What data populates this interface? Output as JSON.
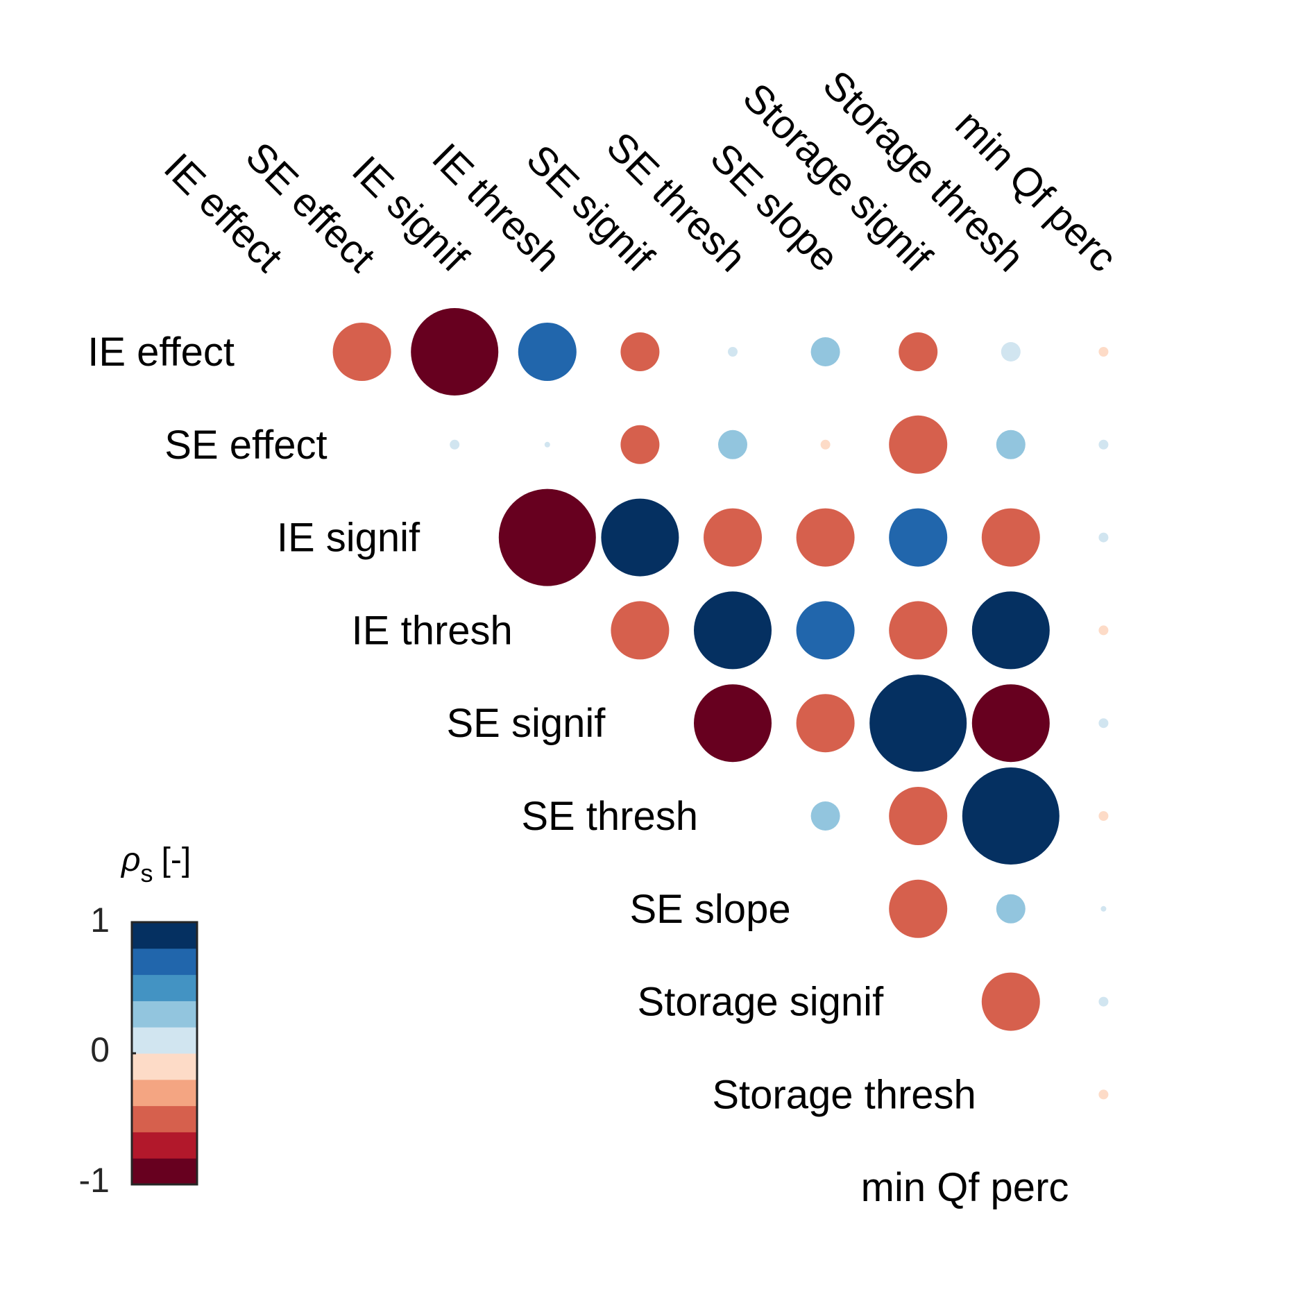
{
  "chart_data": {
    "type": "heatmap",
    "variables": [
      "IE effect",
      "SE effect",
      "IE signif",
      "IE thresh",
      "SE signif",
      "SE thresh",
      "SE slope",
      "Storage signif",
      "Storage thresh",
      "min Qf perc"
    ],
    "matrix_upper": [
      [
        -0.6,
        -0.9,
        0.6,
        -0.4,
        0.1,
        0.3,
        -0.4,
        0.2,
        -0.1
      ],
      [
        0.1,
        0.01,
        -0.4,
        0.3,
        -0.1,
        -0.6,
        0.3,
        0.1
      ],
      [
        -1.0,
        0.8,
        -0.6,
        -0.6,
        0.6,
        -0.6,
        0.1
      ],
      [
        -0.6,
        0.8,
        0.6,
        -0.6,
        0.8,
        -0.1
      ],
      [
        -0.8,
        -0.6,
        1.0,
        -0.8,
        0.1
      ],
      [
        0.3,
        -0.6,
        1.0,
        -0.1
      ],
      [
        -0.6,
        0.3,
        0.01
      ],
      [
        -0.6,
        0.1
      ],
      [
        -0.1
      ]
    ],
    "colorbar": {
      "title": "ρ",
      "title_sub": "s",
      "title_unit": "[-]",
      "range": [
        -1,
        1
      ],
      "ticks": [
        "1",
        "0",
        "-1"
      ],
      "colors": [
        "#67001f",
        "#b2182b",
        "#d6604d",
        "#f4a582",
        "#fddbc7",
        "#d1e5f0",
        "#92c5de",
        "#4393c3",
        "#2166ac",
        "#053061"
      ]
    }
  }
}
